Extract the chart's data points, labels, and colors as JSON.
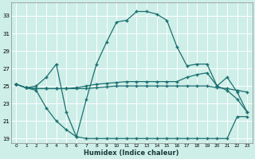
{
  "xlabel": "Humidex (Indice chaleur)",
  "bg_color": "#ceeee8",
  "grid_color": "#ffffff",
  "line_color": "#1a7070",
  "xlim": [
    -0.5,
    23.5
  ],
  "ylim": [
    18.5,
    34.5
  ],
  "yticks": [
    19,
    21,
    23,
    25,
    27,
    29,
    31,
    33
  ],
  "xticks": [
    0,
    1,
    2,
    3,
    4,
    5,
    6,
    7,
    8,
    9,
    10,
    11,
    12,
    13,
    14,
    15,
    16,
    17,
    18,
    19,
    20,
    21,
    22,
    23
  ],
  "xtick_labels": [
    "0",
    "1",
    "2",
    "3",
    "4",
    "5",
    "6",
    "7",
    "8",
    "9",
    "10",
    "11",
    "12",
    "13",
    "14",
    "15",
    "16",
    "17",
    "18",
    "19",
    "20",
    "21",
    "22",
    "23"
  ],
  "curve_peak_x": [
    0,
    1,
    2,
    3,
    4,
    5,
    6,
    7,
    8,
    9,
    10,
    11,
    12,
    13,
    14,
    15,
    16,
    17,
    18,
    19,
    20,
    21,
    22,
    23
  ],
  "curve_peak_y": [
    25.2,
    24.8,
    25.0,
    26.0,
    27.5,
    22.0,
    19.2,
    23.5,
    27.5,
    30.0,
    32.3,
    32.5,
    33.5,
    33.5,
    33.2,
    32.5,
    29.5,
    27.3,
    27.5,
    27.5,
    25.0,
    26.0,
    24.3,
    22.0
  ],
  "curve_mid_x": [
    0,
    1,
    2,
    3,
    4,
    5,
    6,
    7,
    8,
    9,
    10,
    11,
    12,
    13,
    14,
    15,
    16,
    17,
    18,
    19,
    20,
    21,
    22,
    23
  ],
  "curve_mid_y": [
    25.2,
    24.8,
    24.7,
    24.7,
    24.7,
    24.7,
    24.8,
    25.0,
    25.2,
    25.3,
    25.4,
    25.5,
    25.5,
    25.5,
    25.5,
    25.5,
    25.5,
    26.0,
    26.3,
    26.5,
    25.0,
    24.5,
    23.5,
    22.0
  ],
  "curve_flat_x": [
    0,
    1,
    2,
    3,
    4,
    5,
    6,
    7,
    8,
    9,
    10,
    11,
    12,
    13,
    14,
    15,
    16,
    17,
    18,
    19,
    20,
    21,
    22,
    23
  ],
  "curve_flat_y": [
    25.2,
    24.8,
    24.7,
    24.7,
    24.7,
    24.7,
    24.7,
    24.7,
    24.8,
    24.9,
    25.0,
    25.0,
    25.0,
    25.0,
    25.0,
    25.0,
    25.0,
    25.0,
    25.0,
    25.0,
    24.8,
    24.7,
    24.5,
    24.3
  ],
  "curve_low_x": [
    0,
    1,
    2,
    3,
    4,
    5,
    6,
    7,
    8,
    9,
    10,
    11,
    12,
    13,
    14,
    15,
    16,
    17,
    18,
    19,
    20,
    21,
    22,
    23
  ],
  "curve_low_y": [
    25.2,
    24.8,
    24.5,
    22.5,
    21.0,
    20.0,
    19.2,
    19.0,
    19.0,
    19.0,
    19.0,
    19.0,
    19.0,
    19.0,
    19.0,
    19.0,
    19.0,
    19.0,
    19.0,
    19.0,
    19.0,
    19.0,
    21.5,
    21.5
  ]
}
